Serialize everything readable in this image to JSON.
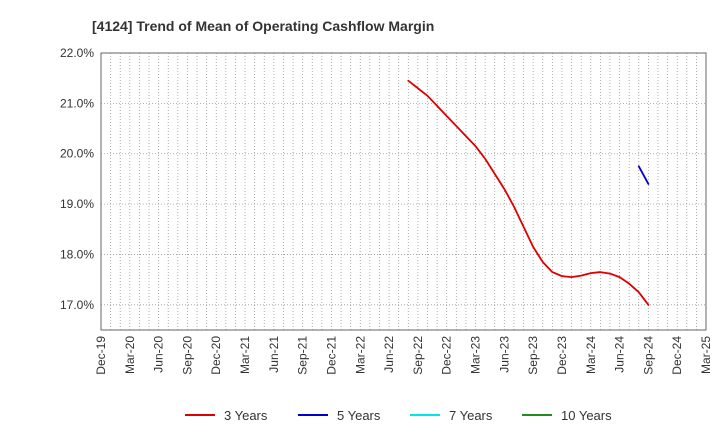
{
  "chart_data": {
    "type": "line",
    "title": "[4124]  Trend of Mean of Operating Cashflow Margin",
    "xlabel": "",
    "ylabel": "",
    "ylim": [
      16.5,
      22.0
    ],
    "y_ticks": [
      17.0,
      18.0,
      19.0,
      20.0,
      21.0,
      22.0
    ],
    "y_tick_labels": [
      "17.0%",
      "18.0%",
      "19.0%",
      "20.0%",
      "21.0%",
      "22.0%"
    ],
    "x_tick_labels": [
      "Dec-19",
      "Mar-20",
      "Jun-20",
      "Sep-20",
      "Dec-20",
      "Mar-21",
      "Jun-21",
      "Sep-21",
      "Dec-21",
      "Mar-22",
      "Jun-22",
      "Sep-22",
      "Dec-22",
      "Mar-23",
      "Jun-23",
      "Sep-23",
      "Dec-23",
      "Mar-24",
      "Jun-24",
      "Sep-24",
      "Dec-24",
      "Mar-25"
    ],
    "x_range_months": [
      "2019-12",
      "2025-03"
    ],
    "grid": true,
    "legend_position": "bottom",
    "series": [
      {
        "name": "3 Years",
        "color": "#dd0000",
        "points": [
          [
            "2022-08",
            21.45
          ],
          [
            "2022-09",
            21.3
          ],
          [
            "2022-10",
            21.15
          ],
          [
            "2022-11",
            20.95
          ],
          [
            "2022-12",
            20.75
          ],
          [
            "2023-01",
            20.55
          ],
          [
            "2023-02",
            20.35
          ],
          [
            "2023-03",
            20.15
          ],
          [
            "2023-04",
            19.9
          ],
          [
            "2023-05",
            19.6
          ],
          [
            "2023-06",
            19.3
          ],
          [
            "2023-07",
            18.95
          ],
          [
            "2023-08",
            18.55
          ],
          [
            "2023-09",
            18.15
          ],
          [
            "2023-10",
            17.85
          ],
          [
            "2023-11",
            17.65
          ],
          [
            "2023-12",
            17.57
          ],
          [
            "2024-01",
            17.55
          ],
          [
            "2024-02",
            17.58
          ],
          [
            "2024-03",
            17.63
          ],
          [
            "2024-04",
            17.65
          ],
          [
            "2024-05",
            17.62
          ],
          [
            "2024-06",
            17.55
          ],
          [
            "2024-07",
            17.42
          ],
          [
            "2024-08",
            17.25
          ],
          [
            "2024-09",
            17.0
          ]
        ]
      },
      {
        "name": "5 Years",
        "color": "#0000cc",
        "points": [
          [
            "2024-08",
            19.75
          ],
          [
            "2024-09",
            19.4
          ]
        ]
      },
      {
        "name": "7 Years",
        "color": "#00e5ee",
        "points": []
      },
      {
        "name": "10 Years",
        "color": "#228b22",
        "points": []
      }
    ]
  }
}
